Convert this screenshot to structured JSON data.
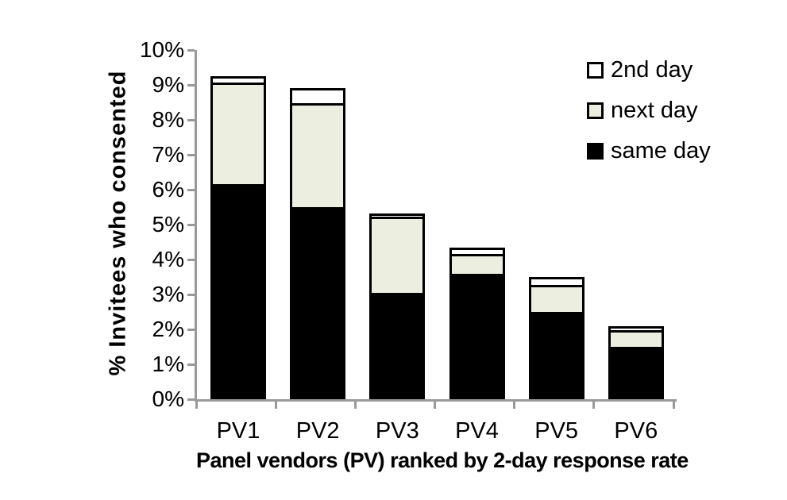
{
  "chart_data": {
    "type": "bar",
    "stacked": true,
    "xlabel": "Panel vendors (PV) ranked by 2-day response rate",
    "ylabel": "% Invitees who consented",
    "categories": [
      "PV1",
      "PV2",
      "PV3",
      "PV4",
      "PV5",
      "PV6"
    ],
    "series": [
      {
        "name": "same day",
        "color": "#000000",
        "values": [
          6.15,
          5.5,
          3.05,
          3.6,
          2.5,
          1.5
        ]
      },
      {
        "name": "next day",
        "color": "#ECEEE0",
        "values": [
          2.85,
          2.9,
          2.1,
          0.5,
          0.7,
          0.4
        ]
      },
      {
        "name": "2nd day",
        "color": "#FFFFFF",
        "values": [
          0.25,
          0.5,
          0.1,
          0.25,
          0.3,
          0.2
        ]
      }
    ],
    "ylim": [
      0,
      10
    ],
    "yticks": [
      "0%",
      "1%",
      "2%",
      "3%",
      "4%",
      "5%",
      "6%",
      "7%",
      "8%",
      "9%",
      "10%"
    ],
    "grid": false,
    "background_color": "#FFFFFF",
    "axis_color": "#999999",
    "bar_border_color": "#000000",
    "legend": {
      "position": "top-right",
      "items": [
        {
          "label": "2nd day",
          "color": "#FFFFFF"
        },
        {
          "label": "next day",
          "color": "#ECEEE0"
        },
        {
          "label": "same day",
          "color": "#000000"
        }
      ]
    }
  }
}
